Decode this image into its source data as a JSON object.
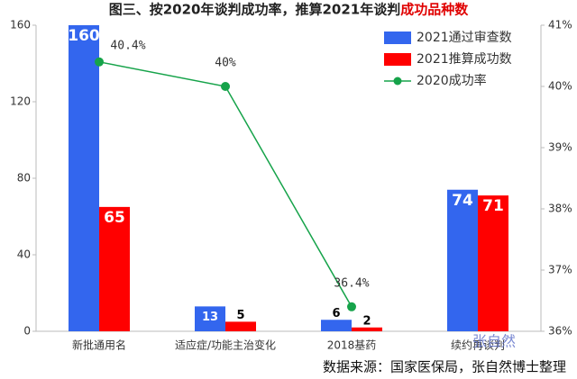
{
  "chart_data": {
    "type": "bar",
    "title": "图三、按2020年谈判成功率，推算2021年谈判",
    "title_highlight": "成功品种数",
    "categories": [
      "新批通用名",
      "适应症/功能主治变化",
      "2018基药",
      "续约再谈判"
    ],
    "series": [
      {
        "name": "2021通过审查数",
        "color": "#3366ee",
        "values": [
          160,
          13,
          6,
          74
        ]
      },
      {
        "name": "2021推算成功数",
        "color": "#ff0000",
        "values": [
          65,
          5,
          2,
          71
        ]
      },
      {
        "name": "2020成功率",
        "color": "#16a34a",
        "type": "line",
        "axis": "y2",
        "values": [
          40.4,
          40,
          36.4,
          null
        ],
        "value_labels": [
          "40.4%",
          "40%",
          "36.4%",
          null
        ]
      }
    ],
    "ylim": [
      0,
      160
    ],
    "yticks": [
      0,
      40,
      80,
      120,
      160
    ],
    "y2lim": [
      36,
      41
    ],
    "y2ticks": [
      {
        "value": 36,
        "label": "36%"
      },
      {
        "value": 37,
        "label": "37%"
      },
      {
        "value": 38,
        "label": "38%"
      },
      {
        "value": 39,
        "label": "39%"
      },
      {
        "value": 40,
        "label": "40%"
      },
      {
        "value": 41,
        "label": "41%"
      }
    ],
    "watermark": "张自然",
    "source": "数据来源：国家医保局，张自然博士整理"
  }
}
